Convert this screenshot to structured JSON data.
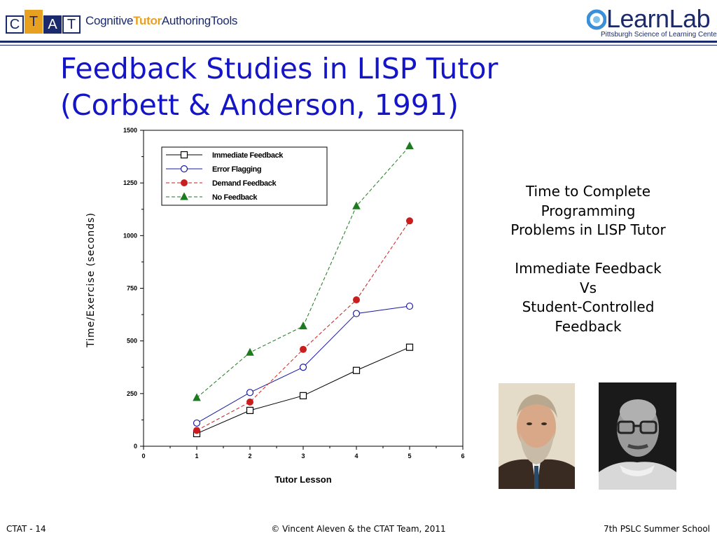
{
  "header": {
    "ctat_letters": [
      "C",
      "T",
      "A",
      "T"
    ],
    "ctat_tag_pre": "Cognitive",
    "ctat_tag_tutor": "Tutor",
    "ctat_tag_post": "AuthoringTools",
    "learnlab_name": "LearnLab",
    "learnlab_sub": "Pittsburgh Science of Learning Center"
  },
  "title": {
    "line1": "Feedback Studies in LISP Tutor",
    "line2": "(Corbett & Anderson, 1991)"
  },
  "side_text": {
    "line1": "Time to Complete",
    "line2": "Programming",
    "line3": "Problems in LISP Tutor",
    "line4": "Immediate Feedback",
    "line5": "Vs",
    "line6": "Student-Controlled",
    "line7": "Feedback"
  },
  "footer": {
    "left": "CTAT - 14",
    "center": "© Vincent Aleven & the CTAT Team, 2011",
    "right": "7th PSLC Summer School"
  },
  "chart_data": {
    "type": "line",
    "title": "",
    "xlabel": "Tutor Lesson",
    "ylabel": "Time/Exercise (seconds)",
    "xlim": [
      0,
      6
    ],
    "ylim": [
      0,
      1500
    ],
    "xticks": [
      0,
      1,
      2,
      3,
      4,
      5,
      6
    ],
    "yticks": [
      0,
      250,
      500,
      750,
      1000,
      1250,
      1500
    ],
    "grid": false,
    "legend_position": "top-left",
    "x": [
      1,
      2,
      3,
      4,
      5
    ],
    "series": [
      {
        "name": "Immediate Feedback",
        "values": [
          60,
          170,
          240,
          360,
          470
        ],
        "color": "#000000",
        "marker": "square-open",
        "dash": "solid"
      },
      {
        "name": "Error Flagging",
        "values": [
          110,
          255,
          375,
          630,
          665
        ],
        "color": "#1a1aa0",
        "marker": "circle-open",
        "dash": "solid"
      },
      {
        "name": "Demand Feedback",
        "values": [
          75,
          210,
          460,
          695,
          1070
        ],
        "color": "#c81e1e",
        "marker": "circle-filled",
        "dash": "dashed"
      },
      {
        "name": "No Feedback",
        "values": [
          230,
          445,
          570,
          1140,
          1425
        ],
        "color": "#1e7a1e",
        "marker": "triangle-filled",
        "dash": "dashed"
      }
    ]
  }
}
